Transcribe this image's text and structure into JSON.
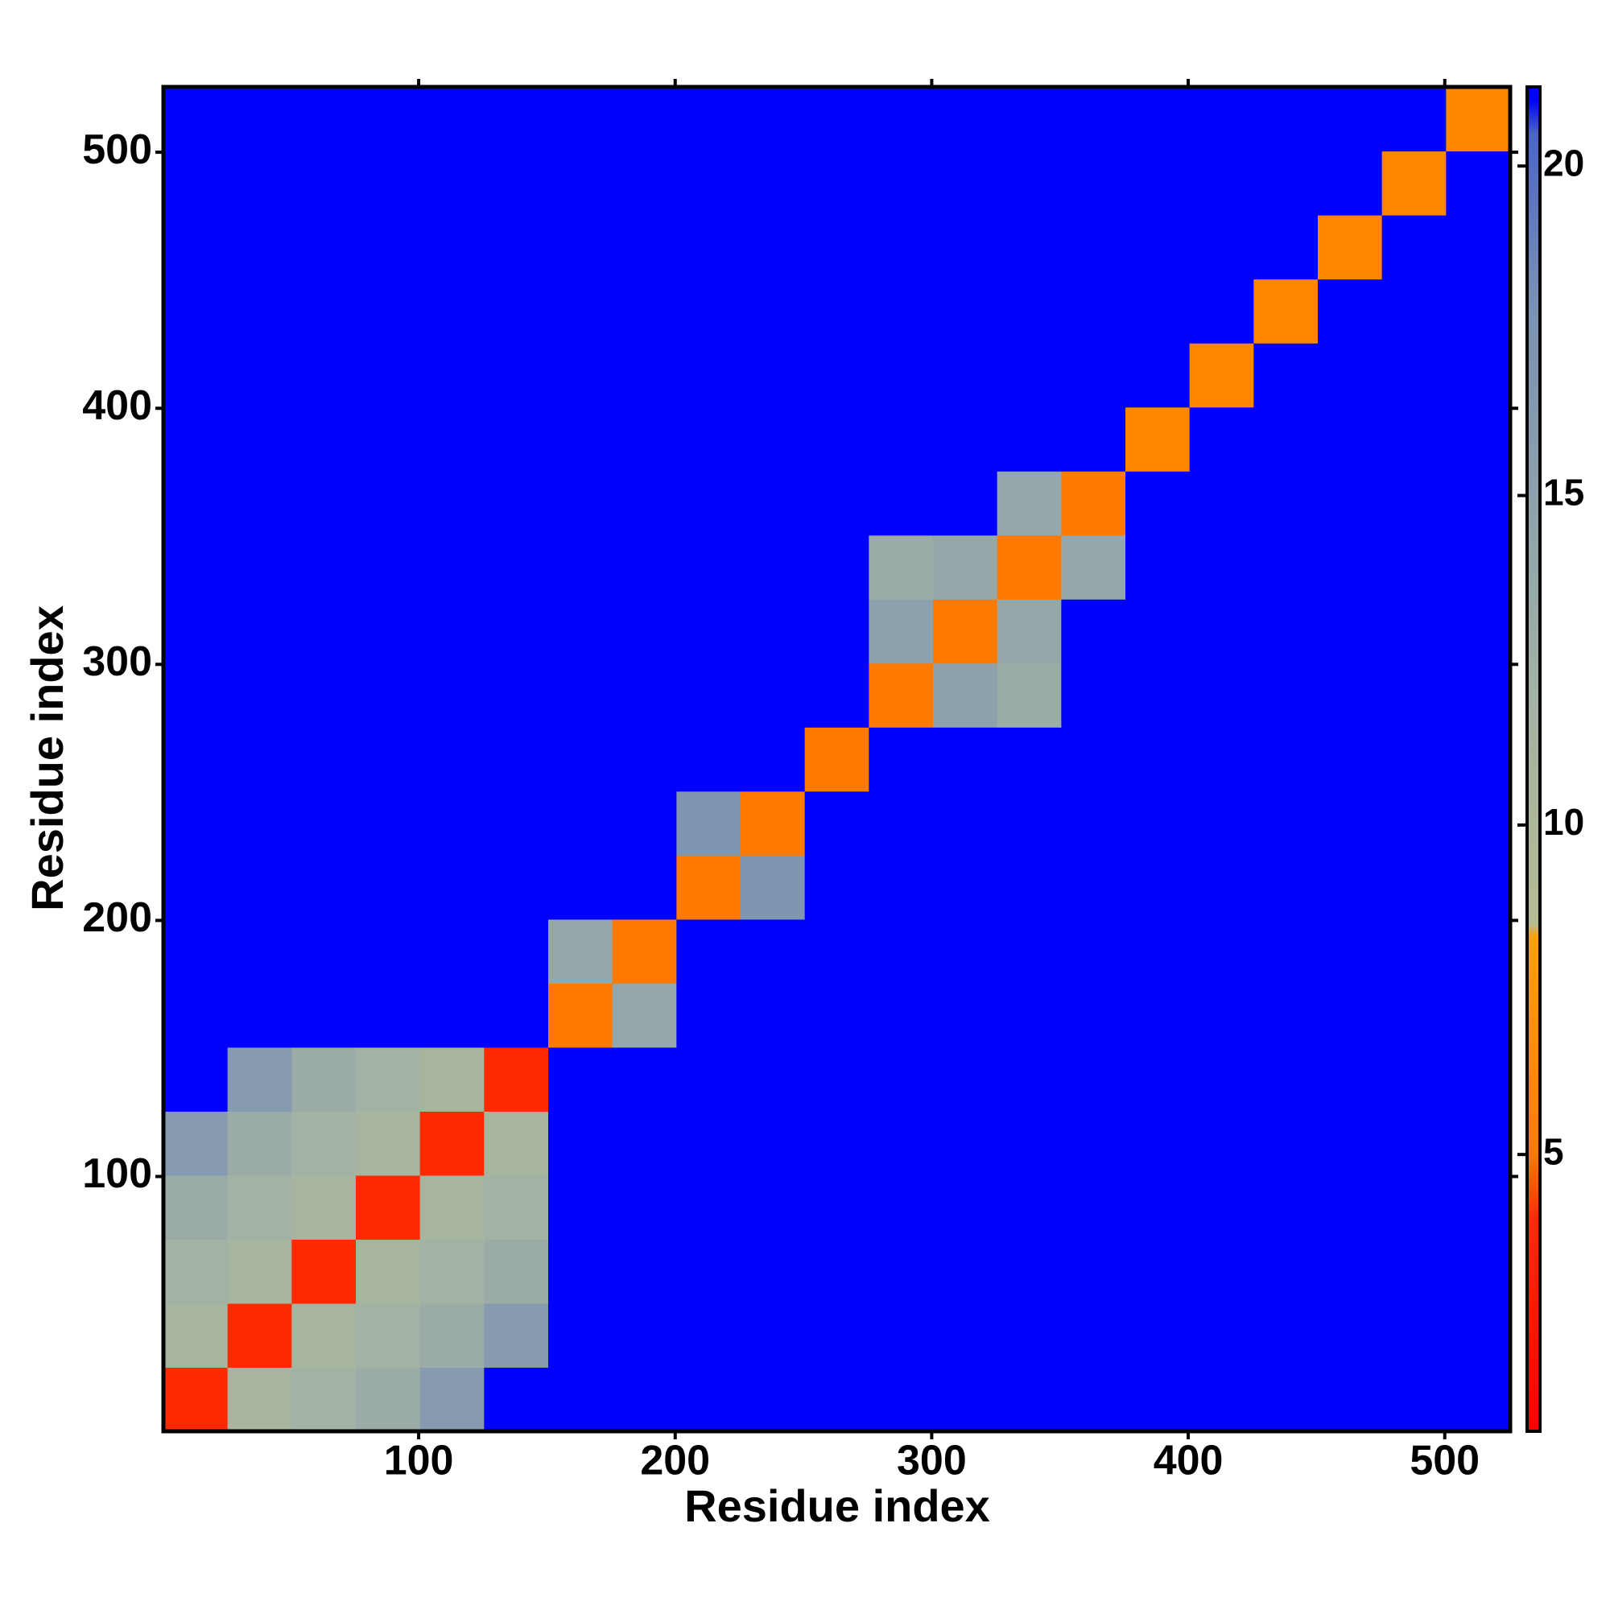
{
  "chart_data": {
    "type": "heatmap",
    "x_label": "Residue index",
    "y_label": "Residue index",
    "xlim": [
      0.5,
      525.5
    ],
    "ylim": [
      0.5,
      525.5
    ],
    "xticks": [
      100,
      200,
      300,
      400,
      500
    ],
    "yticks": [
      100,
      200,
      300,
      400,
      500
    ],
    "zlim": [
      0.8,
      21.2
    ],
    "zticks": [
      5,
      10,
      15,
      20
    ],
    "colorscale": [
      [
        0.8,
        "#ff0000"
      ],
      [
        4,
        "#ff2a00"
      ],
      [
        5,
        "#ff7a00"
      ],
      [
        8.3,
        "#ffa000"
      ],
      [
        8.5,
        "#b4bc92"
      ],
      [
        12,
        "#a2b2a4"
      ],
      [
        18,
        "#7890b4"
      ],
      [
        20.5,
        "#4a64c8"
      ],
      [
        21,
        "#0000ff"
      ]
    ],
    "x": [
      13,
      38,
      63,
      88,
      113,
      138,
      163,
      188,
      213,
      238,
      263,
      288,
      313,
      338,
      363,
      388,
      413,
      438,
      463,
      488,
      513
    ],
    "y": [
      13,
      38,
      63,
      88,
      113,
      138,
      163,
      188,
      213,
      238,
      263,
      288,
      313,
      338,
      363,
      388,
      413,
      438,
      463,
      488,
      513
    ],
    "z": [
      [
        4,
        11,
        12,
        13,
        16,
        21,
        21,
        21,
        21,
        21,
        21,
        21,
        21,
        21,
        21,
        21,
        21,
        21,
        21,
        21,
        21
      ],
      [
        11,
        4,
        11,
        12,
        13,
        16,
        21,
        21,
        21,
        21,
        21,
        21,
        21,
        21,
        21,
        21,
        21,
        21,
        21,
        21,
        21
      ],
      [
        12,
        11,
        4,
        11,
        12,
        13,
        21,
        21,
        21,
        21,
        21,
        21,
        21,
        21,
        21,
        21,
        21,
        21,
        21,
        21,
        21
      ],
      [
        13,
        12,
        11,
        4,
        11,
        12,
        21,
        21,
        21,
        21,
        21,
        21,
        21,
        21,
        21,
        21,
        21,
        21,
        21,
        21,
        21
      ],
      [
        16,
        13,
        12,
        11,
        4,
        11,
        21,
        21,
        21,
        21,
        21,
        21,
        21,
        21,
        21,
        21,
        21,
        21,
        21,
        21,
        21
      ],
      [
        21,
        16,
        13,
        12,
        11,
        4,
        21,
        21,
        21,
        21,
        21,
        21,
        21,
        21,
        21,
        21,
        21,
        21,
        21,
        21,
        21
      ],
      [
        21,
        21,
        21,
        21,
        21,
        21,
        5,
        14,
        21,
        21,
        21,
        21,
        21,
        21,
        21,
        21,
        21,
        21,
        21,
        21,
        21
      ],
      [
        21,
        21,
        21,
        21,
        21,
        21,
        14,
        5,
        21,
        21,
        21,
        21,
        21,
        21,
        21,
        21,
        21,
        21,
        21,
        21,
        21
      ],
      [
        21,
        21,
        21,
        21,
        21,
        21,
        21,
        21,
        5,
        17,
        21,
        21,
        21,
        21,
        21,
        21,
        21,
        21,
        21,
        21,
        21
      ],
      [
        21,
        21,
        21,
        21,
        21,
        21,
        21,
        21,
        17,
        5,
        21,
        21,
        21,
        21,
        21,
        21,
        21,
        21,
        21,
        21,
        21
      ],
      [
        21,
        21,
        21,
        21,
        21,
        21,
        21,
        21,
        21,
        21,
        5,
        21,
        21,
        21,
        21,
        21,
        21,
        21,
        21,
        21,
        21
      ],
      [
        21,
        21,
        21,
        21,
        21,
        21,
        21,
        21,
        21,
        21,
        21,
        5,
        15,
        13,
        21,
        21,
        21,
        21,
        21,
        21,
        21
      ],
      [
        21,
        21,
        21,
        21,
        21,
        21,
        21,
        21,
        21,
        21,
        21,
        15,
        5,
        14,
        21,
        21,
        21,
        21,
        21,
        21,
        21
      ],
      [
        21,
        21,
        21,
        21,
        21,
        21,
        21,
        21,
        21,
        21,
        21,
        13,
        14,
        5,
        14,
        21,
        21,
        21,
        21,
        21,
        21
      ],
      [
        21,
        21,
        21,
        21,
        21,
        21,
        21,
        21,
        21,
        21,
        21,
        21,
        21,
        14,
        5,
        21,
        21,
        21,
        21,
        21,
        21
      ],
      [
        21,
        21,
        21,
        21,
        21,
        21,
        21,
        21,
        21,
        21,
        21,
        21,
        21,
        21,
        21,
        6,
        21,
        21,
        21,
        21,
        21
      ],
      [
        21,
        21,
        21,
        21,
        21,
        21,
        21,
        21,
        21,
        21,
        21,
        21,
        21,
        21,
        21,
        21,
        6,
        21,
        21,
        21,
        21
      ],
      [
        21,
        21,
        21,
        21,
        21,
        21,
        21,
        21,
        21,
        21,
        21,
        21,
        21,
        21,
        21,
        21,
        21,
        6,
        21,
        21,
        21
      ],
      [
        21,
        21,
        21,
        21,
        21,
        21,
        21,
        21,
        21,
        21,
        21,
        21,
        21,
        21,
        21,
        21,
        21,
        21,
        6,
        21,
        21
      ],
      [
        21,
        21,
        21,
        21,
        21,
        21,
        21,
        21,
        21,
        21,
        21,
        21,
        21,
        21,
        21,
        21,
        21,
        21,
        21,
        6,
        21
      ],
      [
        21,
        21,
        21,
        21,
        21,
        21,
        21,
        21,
        21,
        21,
        21,
        21,
        21,
        21,
        21,
        21,
        21,
        21,
        21,
        21,
        6
      ]
    ]
  }
}
